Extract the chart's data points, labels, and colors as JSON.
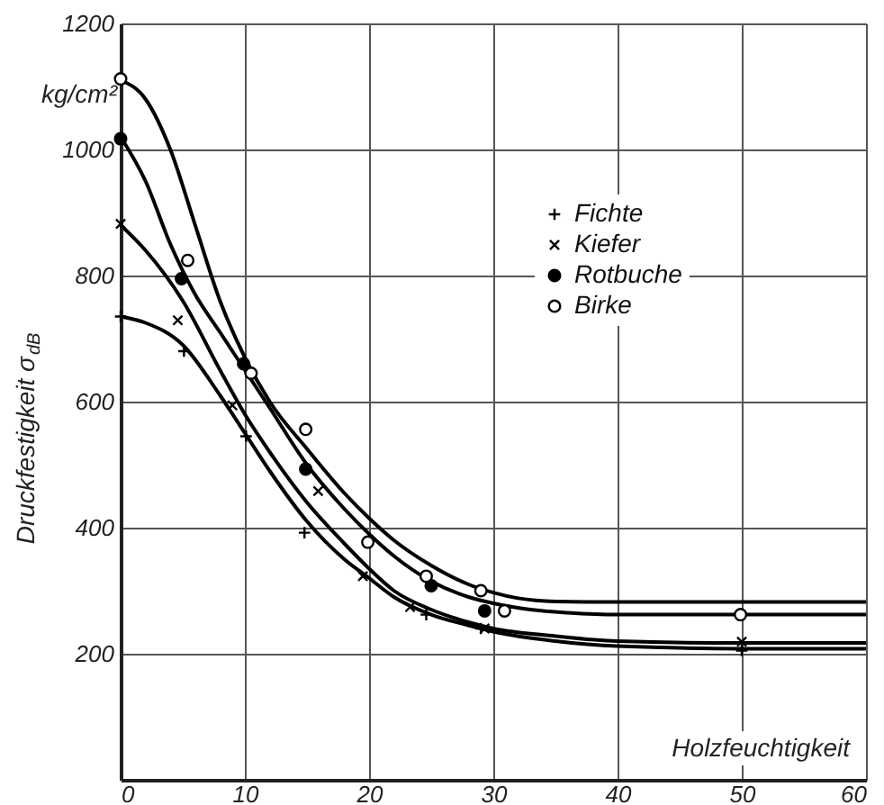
{
  "chart_data": {
    "type": "scatter",
    "xlabel": "Holzfeuchtigkeit",
    "ylabel": "Druckfestigkeit σ$_{dB}$",
    "annotations": [
      "kg/cm²"
    ],
    "xlim": [
      0,
      60
    ],
    "xticks": [
      0,
      10,
      20,
      30,
      40,
      50,
      60
    ],
    "ylim": [
      0,
      1200
    ],
    "yticks": [
      {
        "value": 0,
        "label": null
      },
      200,
      400,
      600,
      800,
      {
        "value": 1000,
        "label": "1000"
      },
      {
        "value": 1200,
        "label": "1200"
      }
    ],
    "grid": true,
    "legend": "top right",
    "series": [
      {
        "name": "Fichte",
        "marker": "cross",
        "color": "#000000",
        "x": [
          0,
          5.1,
          10.1,
          14.8,
          24.6,
          29,
          50
        ],
        "values": [
          735,
          680,
          545,
          392,
          262,
          240,
          205
        ]
      },
      {
        "name": "Kiefer",
        "marker": "x",
        "color": "#000000",
        "x": [
          0,
          4.6,
          9,
          15.9,
          19.5,
          23.3,
          29.3,
          50
        ],
        "values": [
          882,
          729,
          594,
          458,
          323,
          274,
          240,
          219
        ]
      },
      {
        "name": "Rotbuche",
        "marker": "circle",
        "color": "#000000",
        "x": [
          0,
          4.9,
          9.9,
          14.9,
          25,
          29.3
        ],
        "values": [
          1017,
          795,
          660,
          493,
          308,
          268
        ]
      },
      {
        "name": "Birke",
        "marker": "circle",
        "color": "#ffffff",
        "x": [
          0,
          5.4,
          10.5,
          14.9,
          19.9,
          24.6,
          29,
          30.9,
          49.9
        ],
        "values": [
          1112,
          824,
          645,
          556,
          377,
          323,
          300,
          268,
          262
        ]
      },
      {
        "type": "line",
        "color": "#000000",
        "x": [
          0,
          2,
          4,
          6,
          8,
          10,
          12,
          15,
          18,
          20,
          22,
          25,
          28,
          30,
          32,
          35,
          40,
          50,
          60
        ],
        "values": [
          1110,
          1080,
          1000,
          880,
          760,
          670,
          600,
          525,
          455,
          415,
          380,
          340,
          310,
          297,
          288,
          283,
          282,
          282,
          282
        ]
      },
      {
        "type": "line",
        "color": "#000000",
        "x": [
          0,
          2,
          4,
          6,
          8,
          10,
          12,
          15,
          18,
          20,
          22,
          25,
          28,
          30,
          33,
          36,
          40,
          50,
          60
        ],
        "values": [
          1020,
          950,
          850,
          770,
          710,
          650,
          590,
          500,
          430,
          390,
          355,
          315,
          290,
          280,
          270,
          265,
          262,
          262,
          262
        ]
      },
      {
        "type": "line",
        "color": "#000000",
        "x": [
          0,
          2,
          5,
          8,
          10,
          12,
          15,
          18,
          20,
          22,
          25,
          28,
          30,
          35,
          40,
          50,
          60
        ],
        "values": [
          880,
          840,
          760,
          650,
          580,
          520,
          440,
          375,
          335,
          300,
          270,
          250,
          240,
          228,
          220,
          217,
          217
        ]
      },
      {
        "type": "line",
        "color": "#000000",
        "x": [
          0,
          2,
          5,
          8,
          10,
          12,
          15,
          18,
          20,
          22,
          25,
          28,
          30,
          35,
          40,
          50,
          60
        ],
        "values": [
          735,
          725,
          690,
          610,
          550,
          490,
          410,
          350,
          320,
          290,
          262,
          245,
          235,
          220,
          212,
          208,
          208
        ]
      }
    ]
  }
}
